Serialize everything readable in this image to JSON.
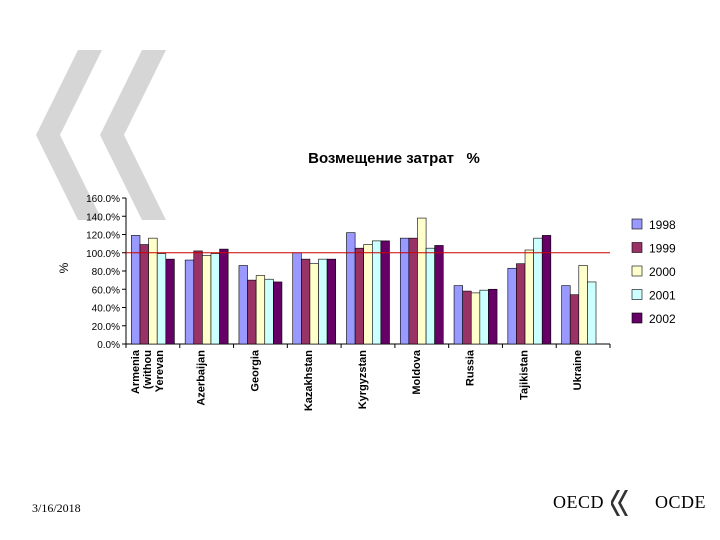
{
  "slide": {
    "date": "3/16/2018",
    "logo": {
      "left_text": "OECD",
      "right_text": "OCDE"
    }
  },
  "chart_data": {
    "type": "bar",
    "title": "Возмещение затрат   %",
    "ylabel": "%",
    "xlabel": "",
    "ylim": [
      0,
      160
    ],
    "yticks": [
      0,
      20,
      40,
      60,
      80,
      100,
      120,
      140,
      160
    ],
    "ytick_labels": [
      "0.0%",
      "20.0%",
      "40.0%",
      "60.0%",
      "80.0%",
      "100.0%",
      "120.0%",
      "140.0%",
      "160.0%"
    ],
    "categories": [
      [
        "Armenia",
        "(withou",
        "Yerevan"
      ],
      [
        "Azerbaijan"
      ],
      [
        "Georgia"
      ],
      [
        "Kazakhstan"
      ],
      [
        "Kyrgyzstan"
      ],
      [
        "Moldova"
      ],
      [
        "Russia"
      ],
      [
        "Tajikistan"
      ],
      [
        "Ukraine"
      ]
    ],
    "series": [
      {
        "name": "1998",
        "color": "#9999ff",
        "values": [
          119,
          92,
          86,
          100,
          122,
          116,
          64,
          83,
          64
        ]
      },
      {
        "name": "1999",
        "color": "#993366",
        "values": [
          109,
          102,
          70,
          93,
          105,
          116,
          58,
          88,
          54
        ]
      },
      {
        "name": "2000",
        "color": "#ffffcc",
        "values": [
          116,
          97,
          75,
          88,
          109,
          138,
          56,
          103,
          86
        ]
      },
      {
        "name": "2001",
        "color": "#ccffff",
        "values": [
          99,
          99,
          71,
          93,
          113,
          105,
          59,
          116,
          68
        ]
      },
      {
        "name": "2002",
        "color": "#660066",
        "values": [
          93,
          104,
          68,
          93,
          113,
          108,
          60,
          119,
          0
        ]
      }
    ],
    "reference_line": {
      "value": 100,
      "color": "#cc0000"
    },
    "grid": false,
    "legend": "right",
    "background_decoration": "oecd-quote-marks"
  }
}
